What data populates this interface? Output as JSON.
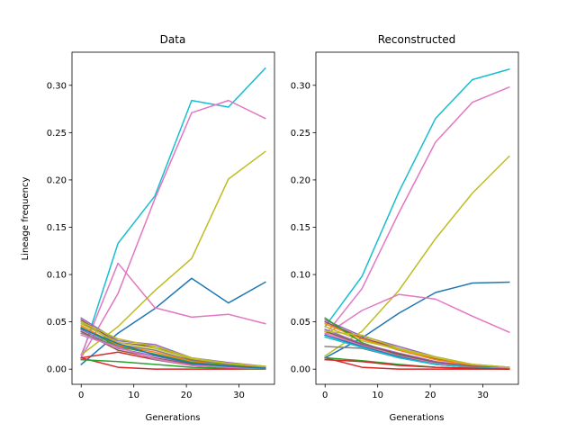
{
  "chart_data": {
    "type": "line",
    "ylabel": "Lineage frequency",
    "panels": [
      {
        "title": "Data",
        "xlabel": "Generations",
        "xlim": [
          -1.75,
          36.75
        ],
        "ylim": [
          -0.016,
          0.335
        ],
        "xticks": [
          0,
          10,
          20,
          30
        ],
        "yticks": [
          0.0,
          0.05,
          0.1,
          0.15,
          0.2,
          0.25,
          0.3
        ],
        "x": [
          0,
          7,
          14,
          21,
          28,
          35
        ],
        "series": [
          {
            "color": "#17becf",
            "values": [
              0.012,
              0.133,
              0.183,
              0.284,
              0.277,
              0.318
            ]
          },
          {
            "color": "#e377c2",
            "values": [
              0.012,
              0.08,
              0.18,
              0.271,
              0.284,
              0.265
            ]
          },
          {
            "color": "#bcbd22",
            "values": [
              0.015,
              0.045,
              0.083,
              0.117,
              0.201,
              0.23
            ]
          },
          {
            "color": "#1f77b4",
            "values": [
              0.005,
              0.038,
              0.064,
              0.096,
              0.07,
              0.092
            ]
          },
          {
            "color": "#e377c2",
            "values": [
              0.015,
              0.112,
              0.065,
              0.055,
              0.058,
              0.048
            ]
          },
          {
            "color": "#d62728",
            "values": [
              0.012,
              0.002,
              0.0,
              0.0,
              0.0,
              0.0
            ]
          },
          {
            "color": "#2ca02c",
            "values": [
              0.01,
              0.008,
              0.005,
              0.002,
              0.001,
              0.0
            ]
          },
          {
            "color": "#d62728",
            "values": [
              0.012,
              0.018,
              0.01,
              0.004,
              0.002,
              0.001
            ]
          },
          {
            "color": "#9467bd",
            "values": [
              0.054,
              0.03,
              0.026,
              0.012,
              0.007,
              0.003
            ]
          },
          {
            "color": "#8c564b",
            "values": [
              0.052,
              0.028,
              0.024,
              0.01,
              0.006,
              0.002
            ]
          },
          {
            "color": "#7f7f7f",
            "values": [
              0.05,
              0.026,
              0.02,
              0.009,
              0.005,
              0.002
            ]
          },
          {
            "color": "#bcbd22",
            "values": [
              0.048,
              0.028,
              0.022,
              0.011,
              0.006,
              0.003
            ]
          },
          {
            "color": "#ff7f0e",
            "values": [
              0.046,
              0.025,
              0.018,
              0.008,
              0.004,
              0.002
            ]
          },
          {
            "color": "#2ca02c",
            "values": [
              0.044,
              0.024,
              0.016,
              0.007,
              0.004,
              0.001
            ]
          },
          {
            "color": "#9467bd",
            "values": [
              0.042,
              0.022,
              0.014,
              0.006,
              0.003,
              0.001
            ]
          },
          {
            "color": "#8c564b",
            "values": [
              0.04,
              0.02,
              0.012,
              0.005,
              0.002,
              0.001
            ]
          },
          {
            "color": "#7f7f7f",
            "values": [
              0.038,
              0.024,
              0.01,
              0.004,
              0.002,
              0.0
            ]
          },
          {
            "color": "#e377c2",
            "values": [
              0.036,
              0.023,
              0.011,
              0.004,
              0.002,
              0.001
            ]
          },
          {
            "color": "#1f77b4",
            "values": [
              0.043,
              0.027,
              0.015,
              0.006,
              0.003,
              0.001
            ]
          },
          {
            "color": "#bcbd22",
            "values": [
              0.05,
              0.032,
              0.024,
              0.012,
              0.006,
              0.003
            ]
          }
        ]
      },
      {
        "title": "Reconstructed",
        "xlabel": "Generations",
        "xlim": [
          -1.75,
          36.75
        ],
        "ylim": [
          -0.016,
          0.335
        ],
        "xticks": [
          0,
          10,
          20,
          30
        ],
        "yticks": [
          0.0,
          0.05,
          0.1,
          0.15,
          0.2,
          0.25,
          0.3
        ],
        "x": [
          0,
          7,
          14,
          21,
          28,
          35
        ],
        "series": [
          {
            "color": "#17becf",
            "values": [
              0.045,
              0.098,
              0.187,
              0.265,
              0.306,
              0.317
            ]
          },
          {
            "color": "#e377c2",
            "values": [
              0.036,
              0.085,
              0.165,
              0.24,
              0.282,
              0.298
            ]
          },
          {
            "color": "#bcbd22",
            "values": [
              0.014,
              0.04,
              0.083,
              0.138,
              0.186,
              0.225
            ]
          },
          {
            "color": "#1f77b4",
            "values": [
              0.012,
              0.033,
              0.059,
              0.081,
              0.091,
              0.092
            ]
          },
          {
            "color": "#e377c2",
            "values": [
              0.036,
              0.062,
              0.079,
              0.074,
              0.056,
              0.039
            ]
          },
          {
            "color": "#d62728",
            "values": [
              0.012,
              0.002,
              0.0,
              0.0,
              0.0,
              0.0
            ]
          },
          {
            "color": "#2ca02c",
            "values": [
              0.012,
              0.009,
              0.005,
              0.002,
              0.001,
              0.0
            ]
          },
          {
            "color": "#7f7f7f",
            "values": [
              0.024,
              0.022,
              0.012,
              0.005,
              0.002,
              0.001
            ]
          },
          {
            "color": "#9467bd",
            "values": [
              0.052,
              0.035,
              0.024,
              0.013,
              0.005,
              0.002
            ]
          },
          {
            "color": "#8c564b",
            "values": [
              0.05,
              0.033,
              0.022,
              0.011,
              0.004,
              0.001
            ]
          },
          {
            "color": "#ff7f0e",
            "values": [
              0.048,
              0.032,
              0.02,
              0.01,
              0.004,
              0.001
            ]
          },
          {
            "color": "#bcbd22",
            "values": [
              0.045,
              0.03,
              0.021,
              0.012,
              0.005,
              0.002
            ]
          },
          {
            "color": "#2ca02c",
            "values": [
              0.054,
              0.028,
              0.015,
              0.006,
              0.002,
              0.001
            ]
          },
          {
            "color": "#9467bd",
            "values": [
              0.042,
              0.027,
              0.017,
              0.008,
              0.003,
              0.001
            ]
          },
          {
            "color": "#8c564b",
            "values": [
              0.04,
              0.026,
              0.016,
              0.007,
              0.003,
              0.001
            ]
          },
          {
            "color": "#e377c2",
            "values": [
              0.038,
              0.025,
              0.014,
              0.006,
              0.002,
              0.001
            ]
          },
          {
            "color": "#1f77b4",
            "values": [
              0.036,
              0.024,
              0.013,
              0.005,
              0.002,
              0.0
            ]
          },
          {
            "color": "#17becf",
            "values": [
              0.034,
              0.023,
              0.012,
              0.005,
              0.002,
              0.0
            ]
          },
          {
            "color": "#d62728",
            "values": [
              0.01,
              0.008,
              0.004,
              0.002,
              0.001,
              0.0
            ]
          },
          {
            "color": "#bcbd22",
            "values": [
              0.04,
              0.036,
              0.022,
              0.013,
              0.005,
              0.002
            ]
          }
        ]
      }
    ]
  }
}
